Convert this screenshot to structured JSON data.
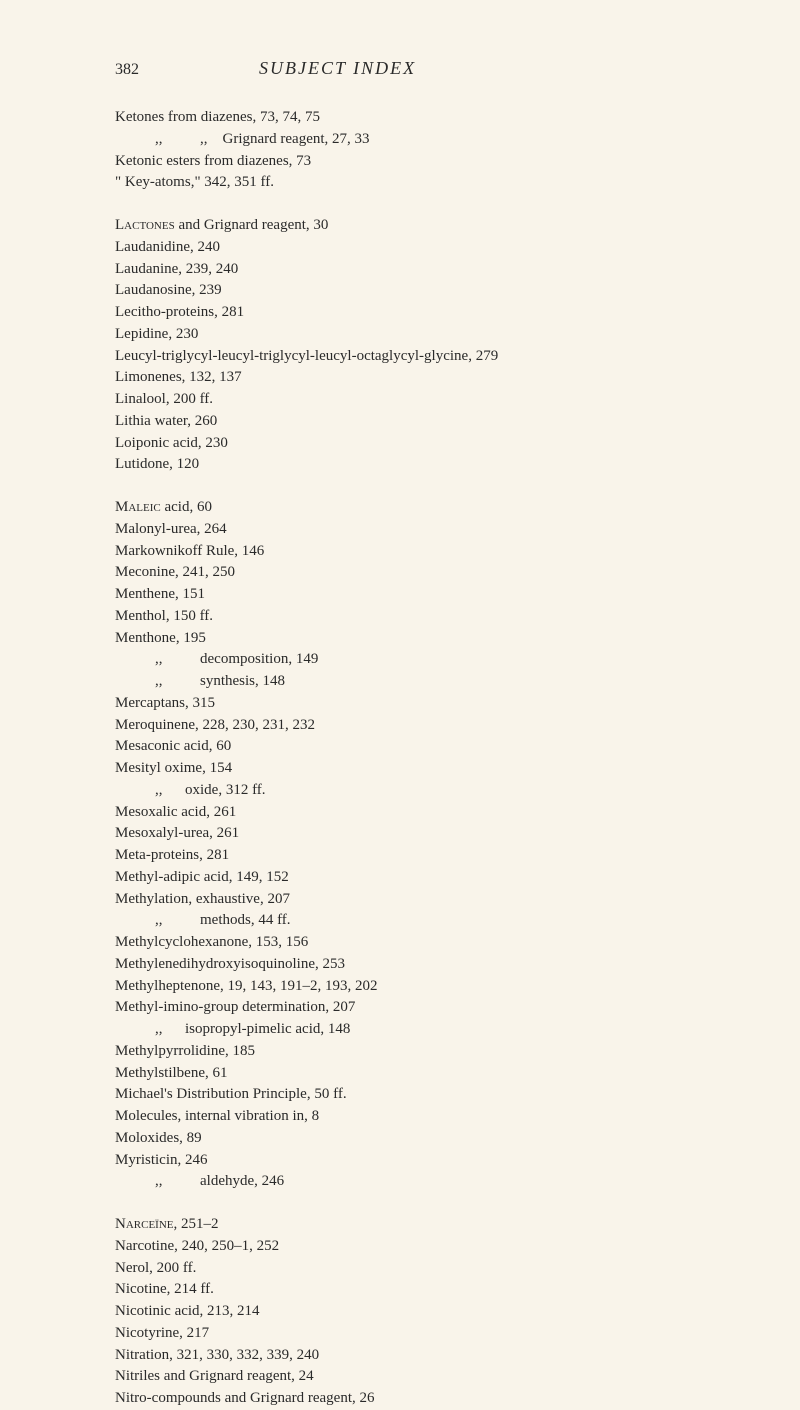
{
  "page": {
    "number": "382",
    "title": "SUBJECT INDEX",
    "colors": {
      "background": "#f9f4ea",
      "text": "#2a2a2a"
    },
    "typography": {
      "body_fontsize": 15,
      "header_fontsize": 18,
      "pagenum_fontsize": 16,
      "line_height": 1.45,
      "font_family": "Georgia, Times New Roman, serif"
    }
  },
  "blocks": [
    {
      "entries": [
        {
          "text": "Ketones from diazenes, 73, 74, 75"
        },
        {
          "text": ",,          ,,    Grignard reagent, 27, 33",
          "indent": 1
        },
        {
          "text": "Ketonic esters from diazenes, 73"
        },
        {
          "text": "\" Key-atoms,\" 342, 351 ff."
        }
      ]
    },
    {
      "entries": [
        {
          "text": "Lactones and Grignard reagent, 30",
          "smallcaps_prefix": "Lactones"
        },
        {
          "text": "Laudanidine, 240"
        },
        {
          "text": "Laudanine, 239, 240"
        },
        {
          "text": "Laudanosine, 239"
        },
        {
          "text": "Lecitho-proteins, 281"
        },
        {
          "text": "Lepidine, 230"
        },
        {
          "text": "Leucyl-triglycyl-leucyl-triglycyl-leucyl-octaglycyl-glycine, 279"
        },
        {
          "text": "Limonenes, 132, 137"
        },
        {
          "text": "Linalool, 200 ff."
        },
        {
          "text": "Lithia water, 260"
        },
        {
          "text": "Loiponic acid, 230"
        },
        {
          "text": "Lutidone, 120"
        }
      ]
    },
    {
      "entries": [
        {
          "text": "Maleic acid, 60",
          "smallcaps_prefix": "Maleic"
        },
        {
          "text": "Malonyl-urea, 264"
        },
        {
          "text": "Markownikoff Rule, 146"
        },
        {
          "text": "Meconine, 241, 250"
        },
        {
          "text": "Menthene, 151"
        },
        {
          "text": "Menthol, 150 ff."
        },
        {
          "text": "Menthone, 195"
        },
        {
          "text": ",,          decomposition, 149",
          "indent": 1
        },
        {
          "text": ",,          synthesis, 148",
          "indent": 1
        },
        {
          "text": "Mercaptans, 315"
        },
        {
          "text": "Meroquinene, 228, 230, 231, 232"
        },
        {
          "text": "Mesaconic acid, 60"
        },
        {
          "text": "Mesityl oxime, 154"
        },
        {
          "text": ",,      oxide, 312 ff.",
          "indent": 1
        },
        {
          "text": "Mesoxalic acid, 261"
        },
        {
          "text": "Mesoxalyl-urea, 261"
        },
        {
          "text": "Meta-proteins, 281"
        },
        {
          "text": "Methyl-adipic acid, 149, 152"
        },
        {
          "text": "Methylation, exhaustive, 207"
        },
        {
          "text": ",,          methods, 44 ff.",
          "indent": 1
        },
        {
          "text": "Methylcyclohexanone, 153, 156"
        },
        {
          "text": "Methylenedihydroxyisoquinoline, 253"
        },
        {
          "text": "Methylheptenone, 19, 143, 191–2, 193, 202"
        },
        {
          "text": "Methyl-imino-group determination, 207"
        },
        {
          "text": ",,      isopropyl-pimelic acid, 148",
          "indent": 1
        },
        {
          "text": "Methylpyrrolidine, 185"
        },
        {
          "text": "Methylstilbene, 61"
        },
        {
          "text": "Michael's Distribution Principle, 50 ff."
        },
        {
          "text": "Molecules, internal vibration in, 8"
        },
        {
          "text": "Moloxides, 89"
        },
        {
          "text": "Myristicin, 246"
        },
        {
          "text": ",,          aldehyde, 246",
          "indent": 1
        }
      ]
    },
    {
      "entries": [
        {
          "text": "Narceïne, 251–2",
          "smallcaps_prefix": "Narceïne"
        },
        {
          "text": "Narcotine, 240, 250–1, 252"
        },
        {
          "text": "Nerol, 200 ff."
        },
        {
          "text": "Nicotine, 214 ff."
        },
        {
          "text": "Nicotinic acid, 213, 214"
        },
        {
          "text": "Nicotyrine, 217"
        },
        {
          "text": "Nitration, 321, 330, 332, 339, 240"
        },
        {
          "text": "Nitriles and Grignard reagent, 24"
        },
        {
          "text": "Nitro-compounds and Grignard reagent, 26"
        }
      ]
    }
  ]
}
